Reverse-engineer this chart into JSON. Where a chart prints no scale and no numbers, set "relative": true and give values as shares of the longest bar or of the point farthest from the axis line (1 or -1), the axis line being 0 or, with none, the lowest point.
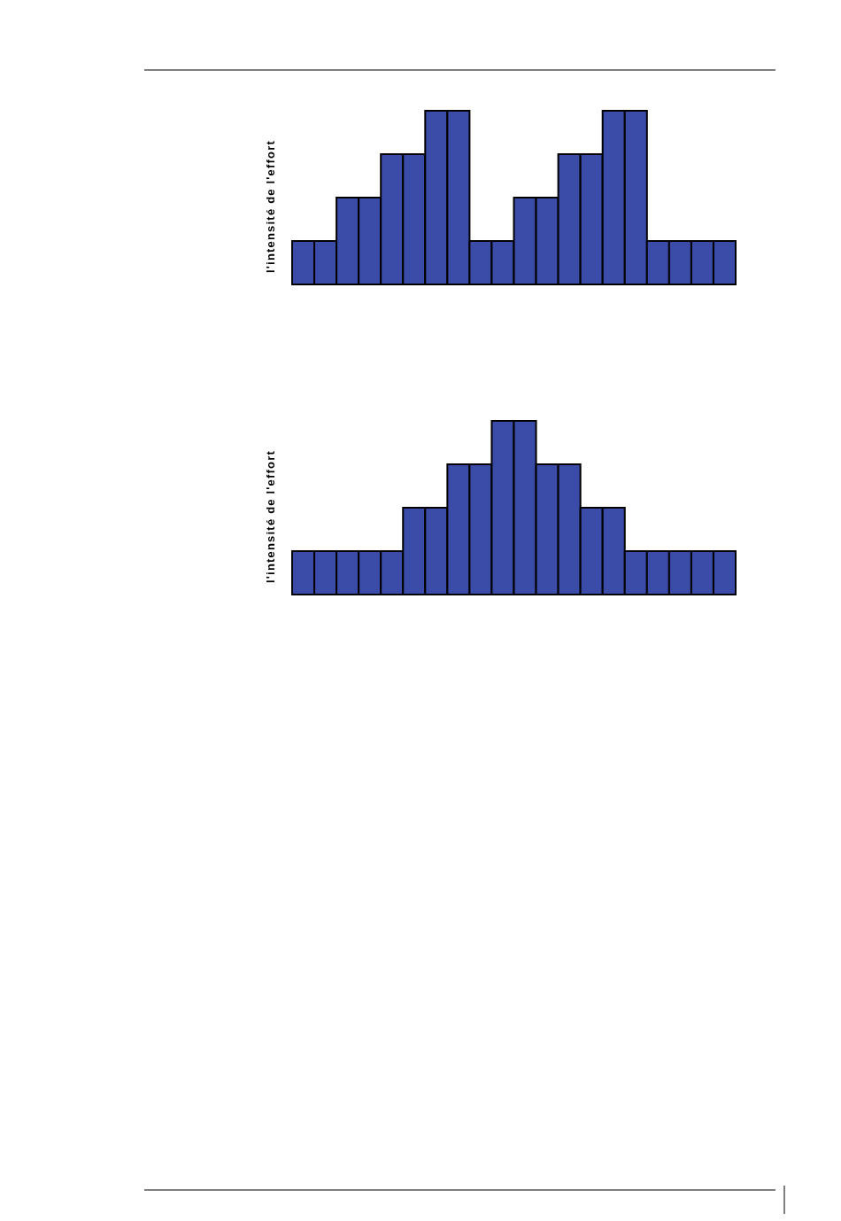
{
  "chart_data": [
    {
      "type": "bar",
      "ylabel": "l'intensité de l'effort",
      "relative": true,
      "color": "#3b4ba8",
      "categories": [
        null,
        null,
        null,
        null,
        null,
        null,
        null,
        null,
        null,
        null,
        null,
        null,
        null,
        null,
        null,
        null,
        null,
        null,
        null,
        null
      ],
      "values": [
        0.25,
        0.25,
        0.5,
        0.5,
        0.75,
        0.75,
        1,
        1,
        0.25,
        0.25,
        0.5,
        0.5,
        0.75,
        0.75,
        1,
        1,
        0.25,
        0.25,
        0.25,
        0.25
      ]
    },
    {
      "type": "bar",
      "ylabel": "l'intensité de l'effort",
      "relative": true,
      "color": "#3b4ba8",
      "categories": [
        null,
        null,
        null,
        null,
        null,
        null,
        null,
        null,
        null,
        null,
        null,
        null,
        null,
        null,
        null,
        null,
        null,
        null,
        null,
        null
      ],
      "values": [
        0.25,
        0.25,
        0.25,
        0.25,
        0.25,
        0.5,
        0.5,
        0.75,
        0.75,
        1,
        1,
        0.75,
        0.75,
        0.5,
        0.5,
        0.25,
        0.25,
        0.25,
        0.25,
        0.25
      ]
    }
  ]
}
